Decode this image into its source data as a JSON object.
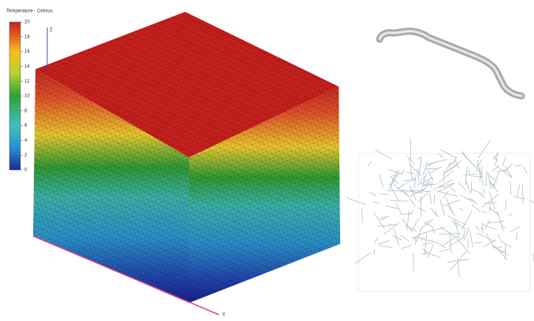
{
  "colorbar": {
    "title": "Temperature - Celsius",
    "range": [
      0,
      20
    ],
    "ticks": [
      0,
      2,
      4,
      6,
      8,
      10,
      12,
      14,
      16,
      18,
      20
    ]
  },
  "axes": {
    "z": "Z",
    "x": "X"
  }
}
